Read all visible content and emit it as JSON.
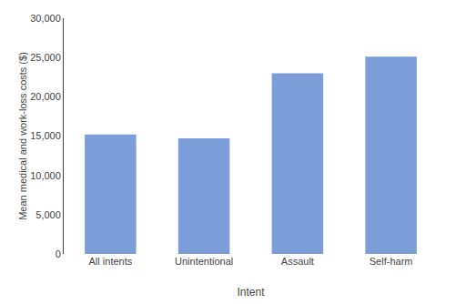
{
  "chart_data": {
    "type": "bar",
    "categories": [
      "All intents",
      "Unintentional",
      "Assault",
      "Self-harm"
    ],
    "values": [
      15200,
      14700,
      23000,
      25100
    ],
    "color": "#7B9ED9",
    "xlabel": "Intent",
    "ylabel": "Mean medical and work-loss costs ($)",
    "ylim": [
      0,
      30000
    ],
    "yticks": [
      0,
      {
        "value": 5000,
        "label": "5,000"
      },
      {
        "value": 10000,
        "label": "10,000"
      },
      {
        "value": 15000,
        "label": "15,000"
      },
      {
        "value": 20000,
        "label": "20,000"
      },
      {
        "value": 25000,
        "label": "25,000"
      },
      {
        "value": 30000,
        "label": "30,000"
      }
    ],
    "grid": false
  }
}
